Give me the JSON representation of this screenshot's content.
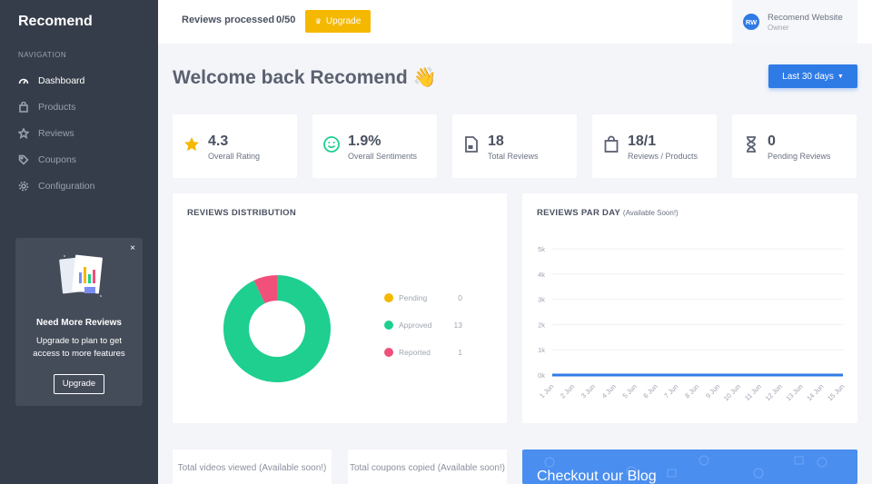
{
  "app": {
    "name": "Recomend"
  },
  "nav": {
    "heading": "NAVIGATION",
    "items": [
      {
        "label": "Dashboard",
        "icon": "gauge-icon",
        "active": true
      },
      {
        "label": "Products",
        "icon": "bag-icon",
        "active": false
      },
      {
        "label": "Reviews",
        "icon": "star-icon",
        "active": false
      },
      {
        "label": "Coupons",
        "icon": "tag-icon",
        "active": false
      },
      {
        "label": "Configuration",
        "icon": "gear-icon",
        "active": false
      }
    ]
  },
  "promo": {
    "title": "Need More Reviews",
    "text": "Upgrade to plan to get access to more features",
    "button": "Upgrade",
    "close": "×"
  },
  "topbar": {
    "reviews_processed_label": "Reviews processed",
    "reviews_processed_count": "0/50",
    "upgrade_label": "Upgrade",
    "account": {
      "initials": "RW",
      "name": "Recomend Website",
      "role": "Owner"
    }
  },
  "main": {
    "welcome": "Welcome back Recomend 👋",
    "date_range": "Last 30 days"
  },
  "stats": [
    {
      "value": "4.3",
      "label": "Overall Rating",
      "icon": "star-icon"
    },
    {
      "value": "1.9%",
      "label": "Overall Sentiments",
      "icon": "smile-icon"
    },
    {
      "value": "18",
      "label": "Total Reviews",
      "icon": "document-icon"
    },
    {
      "value": "18/1",
      "label": "Reviews / Products",
      "icon": "bag-icon"
    },
    {
      "value": "0",
      "label": "Pending Reviews",
      "icon": "hourglass-icon"
    }
  ],
  "distribution": {
    "title": "REVIEWS DISTRIBUTION",
    "legend": [
      {
        "label": "Pending",
        "value": "0"
      },
      {
        "label": "Approved",
        "value": "13"
      },
      {
        "label": "Reported",
        "value": "1"
      }
    ]
  },
  "per_day": {
    "title": "REVIEWS PAR DAY",
    "subtitle": "(Available Soon!)"
  },
  "bottom": {
    "videos": "Total videos viewed (Available soon!)",
    "coupons": "Total coupons copied (Available soon!)",
    "blog": "Checkout our Blog"
  },
  "colors": {
    "primary": "#2f7be6",
    "warning": "#f5b800",
    "pending": "#f5b800",
    "approved": "#1ecf8f",
    "reported": "#f0507a",
    "sidebar": "#363d4a"
  },
  "chart_data": [
    {
      "type": "pie",
      "labels": [
        "Pending",
        "Approved",
        "Reported"
      ],
      "values": [
        0,
        13,
        1
      ],
      "colors": [
        "#f5b800",
        "#1ecf8f",
        "#f0507a"
      ],
      "donut": true
    },
    {
      "type": "line",
      "x": [
        "1 Jun",
        "2 Jun",
        "3 Jun",
        "4 Jun",
        "5 Jun",
        "6 Jun",
        "7 Jun",
        "8 Jun",
        "9 Jun",
        "10 Jun",
        "11 Jun",
        "12 Jun",
        "13 Jun",
        "14 Jun",
        "15 Jun"
      ],
      "series": [
        {
          "values": [
            0,
            0,
            0,
            0,
            0,
            0,
            0,
            0,
            0,
            0,
            0,
            0,
            0,
            0,
            0
          ]
        }
      ],
      "yticks": [
        "0k",
        "1k",
        "2k",
        "3k",
        "4k",
        "5k"
      ],
      "ylim": [
        0,
        5000
      ],
      "grid": true
    }
  ]
}
